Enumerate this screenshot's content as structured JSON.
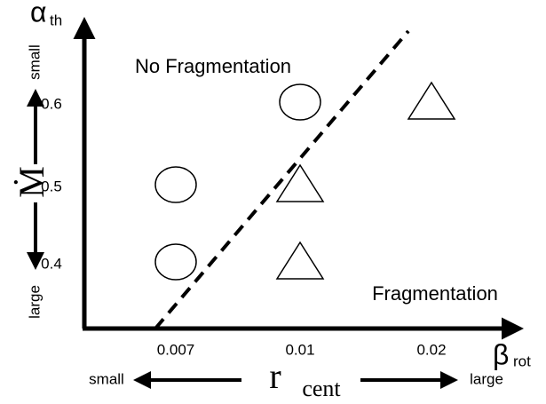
{
  "chart_data": {
    "type": "scatter",
    "x_label": "β",
    "x_label_sub": "rot",
    "y_label": "α",
    "y_label_sub": "th",
    "categories": [
      "0.007",
      "0.01",
      "0.02"
    ],
    "y_categories": [
      "0.4",
      "0.5",
      "0.6"
    ],
    "series": [
      {
        "marker": "circle",
        "x": [
          "0.007",
          "0.007",
          "0.01"
        ],
        "y": [
          "0.5",
          "0.4",
          "0.6"
        ]
      },
      {
        "marker": "triangle",
        "x": [
          "0.01",
          "0.01",
          "0.02"
        ],
        "y": [
          "0.5",
          "0.4",
          "0.6"
        ]
      }
    ],
    "annotations": [
      "No Fragmentation",
      "Fragmentation"
    ],
    "bottom_axis": {
      "label": "r",
      "label_sub": "cent",
      "left": "small",
      "right": "large"
    },
    "side_axis": {
      "label": "Ṁ",
      "top": "small",
      "bottom": "large"
    }
  }
}
